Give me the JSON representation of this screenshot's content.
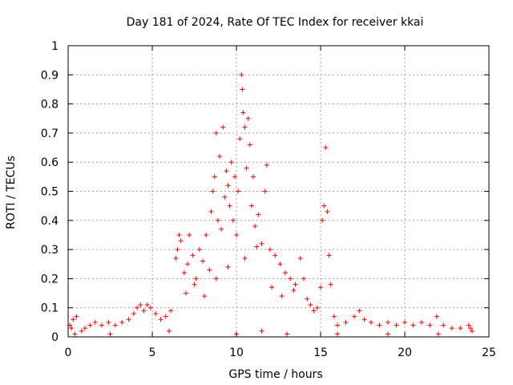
{
  "chart_data": {
    "type": "scatter",
    "title": "Day 181 of 2024, Rate Of TEC Index for receiver kkai",
    "xlabel": "GPS time / hours",
    "ylabel": "ROTI / TECUs",
    "xlim": [
      0,
      25
    ],
    "ylim": [
      0,
      1
    ],
    "x_ticks": [
      0,
      5,
      10,
      15,
      20,
      25
    ],
    "x_tick_labels": [
      "0",
      "5",
      "10",
      "15",
      "20",
      "25"
    ],
    "y_ticks": [
      0,
      0.1,
      0.2,
      0.3,
      0.4,
      0.5,
      0.6,
      0.7,
      0.8,
      0.9,
      1
    ],
    "y_tick_labels": [
      "0",
      "0.1",
      "0.2",
      "0.3",
      "0.4",
      "0.5",
      "0.6",
      "0.7",
      "0.8",
      "0.9",
      "1"
    ],
    "grid": true,
    "marker": "+",
    "series": [
      {
        "name": "ROTI",
        "color": "#ff0000",
        "points": [
          [
            0.1,
            0.04
          ],
          [
            0.2,
            0.03
          ],
          [
            0.3,
            0.06
          ],
          [
            0.5,
            0.07
          ],
          [
            0.4,
            0.01
          ],
          [
            0.8,
            0.02
          ],
          [
            1.0,
            0.03
          ],
          [
            1.3,
            0.04
          ],
          [
            1.6,
            0.05
          ],
          [
            2.0,
            0.04
          ],
          [
            2.4,
            0.05
          ],
          [
            2.8,
            0.04
          ],
          [
            3.2,
            0.05
          ],
          [
            3.6,
            0.06
          ],
          [
            3.9,
            0.08
          ],
          [
            4.1,
            0.1
          ],
          [
            4.3,
            0.11
          ],
          [
            4.5,
            0.09
          ],
          [
            4.7,
            0.11
          ],
          [
            4.9,
            0.1
          ],
          [
            5.2,
            0.08
          ],
          [
            5.5,
            0.06
          ],
          [
            5.8,
            0.07
          ],
          [
            6.1,
            0.09
          ],
          [
            6.4,
            0.27
          ],
          [
            6.5,
            0.3
          ],
          [
            6.6,
            0.35
          ],
          [
            6.7,
            0.33
          ],
          [
            6.9,
            0.22
          ],
          [
            7.1,
            0.25
          ],
          [
            7.2,
            0.35
          ],
          [
            7.4,
            0.28
          ],
          [
            7.6,
            0.2
          ],
          [
            7.8,
            0.3
          ],
          [
            8.0,
            0.26
          ],
          [
            8.2,
            0.35
          ],
          [
            8.4,
            0.23
          ],
          [
            8.5,
            0.43
          ],
          [
            8.6,
            0.5
          ],
          [
            8.7,
            0.55
          ],
          [
            8.8,
            0.7
          ],
          [
            8.9,
            0.4
          ],
          [
            9.0,
            0.62
          ],
          [
            9.1,
            0.37
          ],
          [
            9.2,
            0.72
          ],
          [
            9.3,
            0.48
          ],
          [
            9.4,
            0.57
          ],
          [
            9.5,
            0.52
          ],
          [
            9.6,
            0.45
          ],
          [
            9.7,
            0.6
          ],
          [
            9.8,
            0.4
          ],
          [
            9.9,
            0.55
          ],
          [
            10.0,
            0.35
          ],
          [
            10.1,
            0.5
          ],
          [
            10.2,
            0.68
          ],
          [
            10.3,
            0.9
          ],
          [
            10.35,
            0.85
          ],
          [
            10.4,
            0.77
          ],
          [
            10.5,
            0.72
          ],
          [
            10.6,
            0.58
          ],
          [
            10.7,
            0.75
          ],
          [
            10.8,
            0.66
          ],
          [
            10.9,
            0.45
          ],
          [
            11.0,
            0.55
          ],
          [
            11.1,
            0.38
          ],
          [
            11.3,
            0.42
          ],
          [
            11.5,
            0.32
          ],
          [
            11.7,
            0.5
          ],
          [
            11.8,
            0.59
          ],
          [
            12.0,
            0.3
          ],
          [
            12.3,
            0.28
          ],
          [
            12.6,
            0.25
          ],
          [
            12.9,
            0.22
          ],
          [
            13.2,
            0.2
          ],
          [
            13.5,
            0.18
          ],
          [
            13.8,
            0.27
          ],
          [
            14.0,
            0.2
          ],
          [
            14.2,
            0.13
          ],
          [
            14.4,
            0.11
          ],
          [
            14.6,
            0.09
          ],
          [
            14.8,
            0.1
          ],
          [
            15.0,
            0.17
          ],
          [
            15.1,
            0.4
          ],
          [
            15.2,
            0.45
          ],
          [
            15.3,
            0.65
          ],
          [
            15.4,
            0.43
          ],
          [
            15.5,
            0.28
          ],
          [
            15.6,
            0.18
          ],
          [
            15.8,
            0.07
          ],
          [
            16.0,
            0.04
          ],
          [
            16.5,
            0.05
          ],
          [
            17.0,
            0.07
          ],
          [
            17.3,
            0.09
          ],
          [
            17.6,
            0.06
          ],
          [
            18.0,
            0.05
          ],
          [
            18.5,
            0.04
          ],
          [
            19.0,
            0.05
          ],
          [
            19.5,
            0.04
          ],
          [
            20.0,
            0.05
          ],
          [
            20.5,
            0.04
          ],
          [
            21.0,
            0.05
          ],
          [
            21.5,
            0.04
          ],
          [
            21.9,
            0.07
          ],
          [
            22.3,
            0.04
          ],
          [
            22.8,
            0.03
          ],
          [
            23.3,
            0.03
          ],
          [
            23.8,
            0.04
          ],
          [
            24.0,
            0.02
          ],
          [
            23.9,
            0.03
          ],
          [
            2.5,
            0.01
          ],
          [
            6.0,
            0.02
          ],
          [
            10.0,
            0.01
          ],
          [
            11.5,
            0.02
          ],
          [
            13.0,
            0.01
          ],
          [
            16.0,
            0.01
          ],
          [
            19.0,
            0.01
          ],
          [
            22.0,
            0.01
          ],
          [
            8.8,
            0.2
          ],
          [
            9.5,
            0.24
          ],
          [
            10.5,
            0.27
          ],
          [
            11.2,
            0.31
          ],
          [
            12.1,
            0.17
          ],
          [
            12.7,
            0.14
          ],
          [
            13.4,
            0.16
          ],
          [
            7.0,
            0.15
          ],
          [
            7.5,
            0.18
          ],
          [
            8.1,
            0.14
          ]
        ]
      }
    ]
  }
}
